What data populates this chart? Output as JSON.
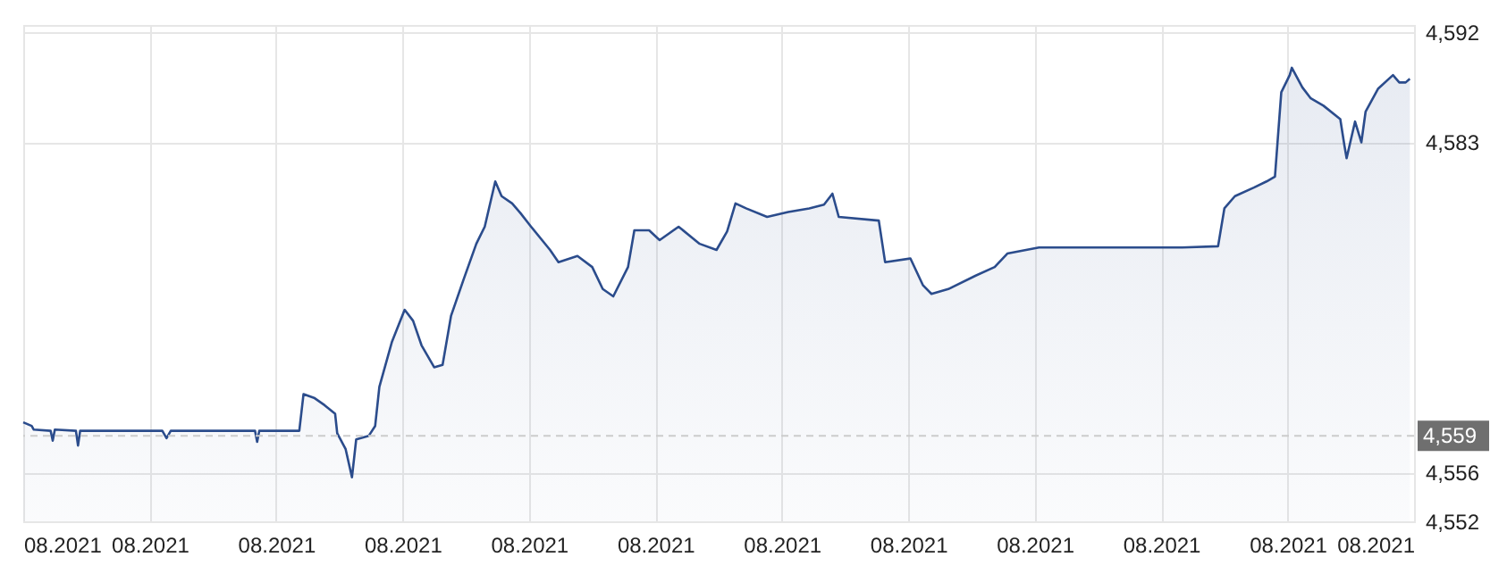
{
  "chart_data": {
    "type": "area",
    "x": [
      "2021-08-02T00:00",
      "2021-08-02T04:00",
      "2021-08-02T05:00",
      "2021-08-02T13:00",
      "2021-08-02T14:00",
      "2021-08-02T15:00",
      "2021-08-03T01:00",
      "2021-08-03T02:00",
      "2021-08-03T03:00",
      "2021-08-04T18:00",
      "2021-08-04T20:00",
      "2021-08-04T22:00",
      "2021-08-06T14:00",
      "2021-08-06T15:00",
      "2021-08-06T16:00",
      "2021-08-07T11:00",
      "2021-08-07T13:00",
      "2021-08-07T18:00",
      "2021-08-07T23:00",
      "2021-08-08T04:00",
      "2021-08-08T05:00",
      "2021-08-08T09:00",
      "2021-08-08T12:00",
      "2021-08-08T14:00",
      "2021-08-08T20:00",
      "2021-08-08T23:00",
      "2021-08-09T01:00",
      "2021-08-09T07:00",
      "2021-08-09T13:00",
      "2021-08-09T17:00",
      "2021-08-09T21:00",
      "2021-08-10T03:00",
      "2021-08-10T07:00",
      "2021-08-10T11:00",
      "2021-08-10T17:00",
      "2021-08-10T23:00",
      "2021-08-11T03:00",
      "2021-08-11T08:00",
      "2021-08-11T11:00",
      "2021-08-11T16:00",
      "2021-08-11T20:00",
      "2021-08-12T01:00",
      "2021-08-12T10:00",
      "2021-08-12T14:00",
      "2021-08-12T23:00",
      "2021-08-13T06:00",
      "2021-08-13T11:00",
      "2021-08-13T16:00",
      "2021-08-13T23:00",
      "2021-08-14T02:00",
      "2021-08-14T09:00",
      "2021-08-14T14:00",
      "2021-08-14T23:00",
      "2021-08-15T09:00",
      "2021-08-15T17:00",
      "2021-08-15T22:00",
      "2021-08-16T02:00",
      "2021-08-16T07:00",
      "2021-08-16T17:00",
      "2021-08-17T03:00",
      "2021-08-17T13:00",
      "2021-08-17T20:00",
      "2021-08-18T00:00",
      "2021-08-18T03:00",
      "2021-08-18T22:00",
      "2021-08-19T01:00",
      "2021-08-19T13:00",
      "2021-08-19T19:00",
      "2021-08-19T23:00",
      "2021-08-20T07:00",
      "2021-08-20T20:00",
      "2021-08-21T05:00",
      "2021-08-21T11:00",
      "2021-08-22T02:00",
      "2021-08-23T12:00",
      "2021-08-24T22:00",
      "2021-08-25T15:00",
      "2021-08-25T18:00",
      "2021-08-25T23:00",
      "2021-08-26T08:00",
      "2021-08-26T14:00",
      "2021-08-26T18:00",
      "2021-08-26T21:00",
      "2021-08-27T01:00",
      "2021-08-27T02:00",
      "2021-08-27T07:00",
      "2021-08-27T11:00",
      "2021-08-27T17:00",
      "2021-08-28T01:00",
      "2021-08-28T03:00",
      "2021-08-28T04:00",
      "2021-08-28T08:00",
      "2021-08-28T11:00",
      "2021-08-28T13:00",
      "2021-08-28T19:00",
      "2021-08-29T02:00",
      "2021-08-29T05:00",
      "2021-08-29T08:00",
      "2021-08-29T10:00"
    ],
    "series": [
      {
        "color": "#2b4c8c",
        "values": [
          4560.1,
          4559.8,
          4559.5,
          4559.4,
          4558.6,
          4559.5,
          4559.4,
          4558.2,
          4559.4,
          4559.4,
          4558.8,
          4559.4,
          4559.4,
          4558.5,
          4559.4,
          4559.4,
          4562.4,
          4562.1,
          4561.5,
          4560.8,
          4559.2,
          4557.9,
          4555.6,
          4558.7,
          4559.0,
          4559.8,
          4563.0,
          4566.7,
          4569.3,
          4568.4,
          4566.4,
          4564.6,
          4564.8,
          4568.8,
          4571.8,
          4574.7,
          4576.1,
          4579.8,
          4578.6,
          4578.0,
          4577.2,
          4576.1,
          4574.2,
          4573.2,
          4573.7,
          4572.8,
          4571.0,
          4570.4,
          4572.8,
          4575.8,
          4575.8,
          4575.0,
          4576.1,
          4574.7,
          4574.2,
          4575.7,
          4578.0,
          4577.6,
          4576.9,
          4577.3,
          4577.6,
          4577.9,
          4578.8,
          4576.9,
          4576.6,
          4573.2,
          4573.5,
          4571.3,
          4570.6,
          4571.0,
          4572.1,
          4572.8,
          4573.9,
          4574.4,
          4574.4,
          4574.4,
          4574.5,
          4577.6,
          4578.6,
          4579.3,
          4579.8,
          4580.2,
          4587.1,
          4588.5,
          4589.1,
          4587.5,
          4586.6,
          4586.0,
          4584.9,
          4582.7,
          4581.7,
          4584.7,
          4583.0,
          4585.5,
          4587.4,
          4588.5,
          4587.9,
          4587.9,
          4588.2
        ]
      }
    ],
    "xlim": [
      "2021-08-02T00:00",
      "2021-08-29T12:00"
    ],
    "xticks": [
      {
        "value": "2021-08-02T00:00",
        "label": "08.2021"
      },
      {
        "value": "2021-08-04T12:00",
        "label": "08.2021"
      },
      {
        "value": "2021-08-07T00:00",
        "label": "08.2021"
      },
      {
        "value": "2021-08-09T12:00",
        "label": "08.2021"
      },
      {
        "value": "2021-08-12T00:00",
        "label": "08.2021"
      },
      {
        "value": "2021-08-14T12:00",
        "label": "08.2021"
      },
      {
        "value": "2021-08-17T00:00",
        "label": "08.2021"
      },
      {
        "value": "2021-08-19T12:00",
        "label": "08.2021"
      },
      {
        "value": "2021-08-22T00:00",
        "label": "08.2021"
      },
      {
        "value": "2021-08-24T12:00",
        "label": "08.2021"
      },
      {
        "value": "2021-08-27T00:00",
        "label": "08.2021"
      },
      {
        "value": "2021-08-29T12:00",
        "label": "08.2021"
      }
    ],
    "ylim": [
      4552,
      4592.6
    ],
    "yticks": [
      {
        "value": 4552,
        "label": "4,552"
      },
      {
        "value": 4556,
        "label": "4,556"
      },
      {
        "value": 4583,
        "label": "4,583"
      },
      {
        "value": 4592,
        "label": "4,592"
      }
    ],
    "ref_lines": [
      {
        "axis": "y",
        "value": 4559,
        "label": "4,559",
        "color": "#cccccc",
        "line_style": "dashed"
      }
    ],
    "grid": true
  }
}
